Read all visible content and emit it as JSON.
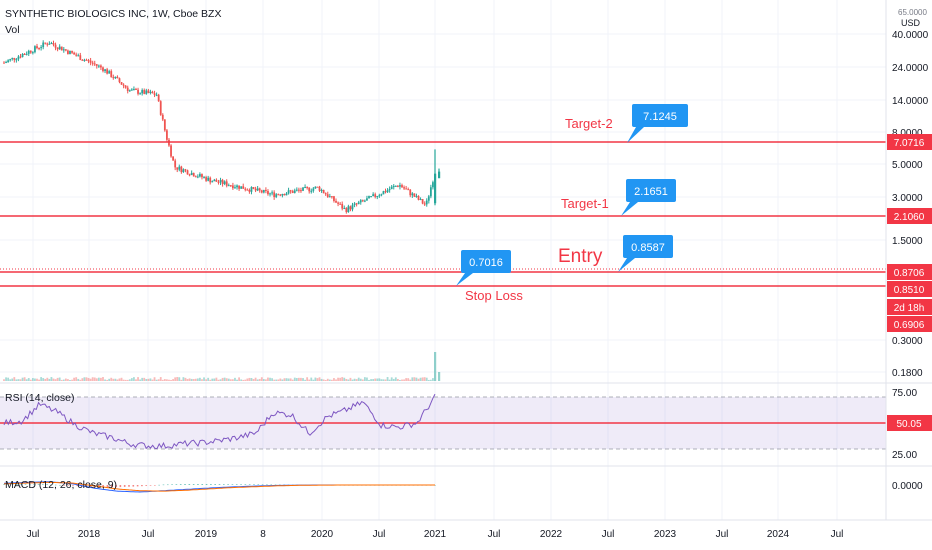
{
  "header": {
    "title": "SYNTHETIC BIOLOGICS INC, 1W, Cboe BZX",
    "volume_label": "Vol",
    "currency": "USD",
    "top_tick_partial": "65.0000"
  },
  "indicators": {
    "rsi_label": "RSI (14, close)",
    "macd_label": "MACD (12, 26, close, 9)"
  },
  "colors": {
    "up": "#26a69a",
    "down": "#ef5350",
    "level_line": "#f23645",
    "level_label_text": "#f23645",
    "callout_bg": "#2196f3",
    "rsi_line": "#7e57c2",
    "rsi_band": "rgba(126,87,194,0.12)",
    "macd_line": "#2962ff",
    "signal_line": "#ff6d00",
    "grid": "#f0f3fa",
    "axis_text": "#131722"
  },
  "chart_data": {
    "type": "candlestick",
    "scale": "log",
    "price_ticks": [
      "40.0000",
      "24.0000",
      "14.0000",
      "8.0000",
      "5.0000",
      "3.0000",
      "1.5000",
      "0.8706",
      "0.8510",
      "0.6906",
      "0.3000",
      "0.1800"
    ],
    "time_ticks": [
      "Jul",
      "2018",
      "Jul",
      "2019",
      "8",
      "2020",
      "Jul",
      "2021",
      "Jul",
      "2022",
      "Jul",
      "2023",
      "Jul",
      "2024",
      "Jul"
    ],
    "price_series_approx": [
      {
        "t": "2017-01",
        "close": 20
      },
      {
        "t": "2017-06",
        "close": 36
      },
      {
        "t": "2017-12",
        "close": 17
      },
      {
        "t": "2018-03",
        "close": 9
      },
      {
        "t": "2018-06",
        "close": 8
      },
      {
        "t": "2018-07",
        "close": 2.6
      },
      {
        "t": "2018-08",
        "close": 1.0
      },
      {
        "t": "2018-12",
        "close": 0.68
      },
      {
        "t": "2019-07",
        "close": 0.45
      },
      {
        "t": "2019-12",
        "close": 0.55
      },
      {
        "t": "2020-03",
        "close": 0.29
      },
      {
        "t": "2020-09",
        "close": 0.6
      },
      {
        "t": "2020-12",
        "close": 0.33
      },
      {
        "t": "2021-01",
        "close": 0.8706
      }
    ],
    "levels": [
      {
        "label": "Target-2",
        "price": 7.0716,
        "axis_label": "7.0716"
      },
      {
        "label": "Target-1",
        "price": 2.106,
        "axis_label": "2.1060"
      },
      {
        "label": "Entry",
        "price": 0.8706,
        "axis_label": "0.8706"
      },
      {
        "label": "Stop Loss",
        "price": 0.851,
        "axis_label": "0.8510"
      }
    ],
    "axis_badges": [
      {
        "text": "2d 18h"
      },
      {
        "text": "0.6906"
      }
    ],
    "callouts": [
      {
        "text": "7.1245"
      },
      {
        "text": "2.1651"
      },
      {
        "text": "0.8587"
      },
      {
        "text": "0.7016"
      }
    ],
    "rsi": {
      "ticks": [
        "75.00",
        "25.00"
      ],
      "value_label": "50.05",
      "value": 50.05,
      "series_approx": [
        50,
        52,
        68,
        60,
        48,
        40,
        36,
        30,
        28,
        28,
        30,
        31,
        33,
        36,
        40,
        60,
        58,
        40,
        56,
        62,
        70,
        48,
        46,
        50,
        75
      ]
    },
    "macd": {
      "ticks": [
        "0.0000"
      ],
      "macd_series_approx": [
        0.8,
        1.2,
        1.5,
        0.6,
        -1.5,
        -2.8,
        -3.2,
        -2.6,
        -2.0,
        -1.4,
        -0.9,
        -0.5,
        -0.2,
        -0.05,
        0,
        0,
        0,
        0,
        0,
        0
      ],
      "signal_series_approx": [
        0.5,
        0.9,
        1.2,
        0.9,
        -0.4,
        -1.8,
        -2.6,
        -2.8,
        -2.4,
        -1.8,
        -1.2,
        -0.8,
        -0.4,
        -0.15,
        -0.05,
        0,
        0,
        0,
        0,
        0
      ]
    }
  }
}
